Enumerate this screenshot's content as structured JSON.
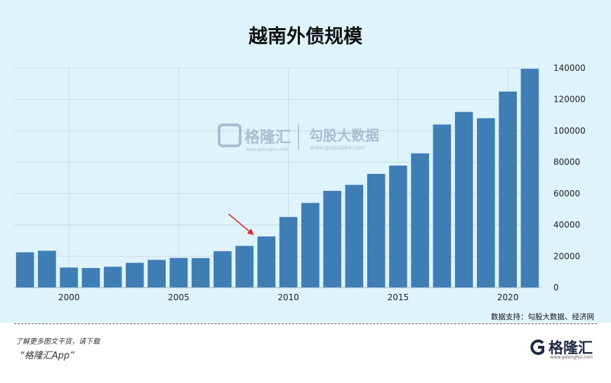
{
  "chart_data": {
    "type": "bar",
    "title": "越南外债规模",
    "x": [
      1998,
      1999,
      2000,
      2001,
      2002,
      2003,
      2004,
      2005,
      2006,
      2007,
      2008,
      2009,
      2010,
      2011,
      2012,
      2013,
      2014,
      2015,
      2016,
      2017,
      2018,
      2019,
      2020,
      2021
    ],
    "values": [
      22500,
      23500,
      12800,
      12500,
      13300,
      15800,
      17700,
      18900,
      18800,
      23200,
      26600,
      32600,
      45000,
      54000,
      61700,
      65500,
      72500,
      77800,
      85600,
      104000,
      112000,
      108000,
      125000,
      139500
    ],
    "x_ticks": [
      "2000",
      "2005",
      "2010",
      "2015",
      "2020"
    ],
    "x_tick_values": [
      2000,
      2005,
      2010,
      2015,
      2020
    ],
    "y_ticks": [
      "0",
      "20000",
      "40000",
      "60000",
      "80000",
      "100000",
      "120000",
      "140000"
    ],
    "y_tick_values": [
      0,
      20000,
      40000,
      60000,
      80000,
      100000,
      120000,
      140000
    ],
    "ylim": [
      0,
      140000
    ],
    "y_axis_side": "right",
    "grid": true,
    "bar_color": "#3f7eb5",
    "annotation": {
      "type": "arrow",
      "target_x": 2009,
      "color": "#e02a2a"
    },
    "source": "数据支持：勾股大数据、经济网"
  },
  "watermark": {
    "left": "格隆汇",
    "left_domain": "www.gelonghui.com",
    "right": "勾股大数据",
    "right_domain": "www.gogudata.com"
  },
  "footer": {
    "line1": "了解更多图文干货，请下载",
    "line2": "“格隆汇App”",
    "logo_name": "格隆汇",
    "logo_domain": "www.gelonghui.com"
  }
}
